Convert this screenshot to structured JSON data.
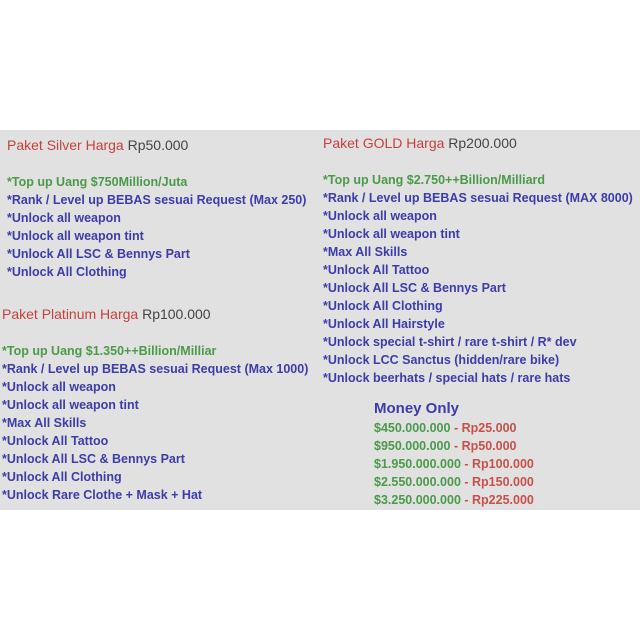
{
  "silver": {
    "name": "Paket Silver Harga",
    "price": "Rp50.000",
    "money": "*Top up Uang $750Million/Juta",
    "items": [
      "*Rank / Level up BEBAS sesuai Request (Max 250)",
      "*Unlock all weapon",
      "*Unlock all weapon tint",
      "*Unlock All LSC & Bennys Part",
      "*Unlock All Clothing"
    ]
  },
  "platinum": {
    "name": "Paket Platinum Harga",
    "price": "Rp100.000",
    "money": "*Top up Uang $1.350++Billion/Milliar",
    "items": [
      "*Rank / Level up BEBAS sesuai Request (Max 1000)",
      "*Unlock all weapon",
      "*Unlock all weapon tint",
      "*Max All Skills",
      "*Unlock All Tattoo",
      "*Unlock All LSC & Bennys Part",
      "*Unlock All Clothing",
      "*Unlock Rare Clothe + Mask + Hat"
    ]
  },
  "gold": {
    "name": "Paket GOLD Harga",
    "price": "Rp200.000",
    "money": "*Top up Uang $2.750++Billion/Milliard",
    "items": [
      "*Rank / Level up BEBAS sesuai Request (MAX 8000)",
      "*Unlock all weapon",
      "*Unlock all weapon tint",
      "*Max All Skills",
      "*Unlock All Tattoo",
      "*Unlock All LSC & Bennys Part",
      "*Unlock All Clothing",
      "*Unlock All Hairstyle",
      "*Unlock special t-shirt / rare t-shirt / R* dev",
      "*Unlock LCC Sanctus (hidden/rare bike)",
      "*Unlock beerhats / special hats / rare hats"
    ]
  },
  "money_only": {
    "title": "Money Only",
    "rows": [
      {
        "amount": "$450.000.000",
        "sep": " - ",
        "price": "Rp25.000"
      },
      {
        "amount": "$950.000.000",
        "sep": " - ",
        "price": "Rp50.000"
      },
      {
        "amount": "$1.950.000.000",
        "sep": " - ",
        "price": "Rp100.000"
      },
      {
        "amount": "$2.550.000.000",
        "sep": " - ",
        "price": "Rp150.000"
      },
      {
        "amount": "$3.250.000.000",
        "sep": " - ",
        "price": "Rp225.000"
      }
    ]
  },
  "colors": {
    "title": "#c8403c",
    "money": "#4a9a4a",
    "feature": "#3c3caa",
    "background": "#e1e1e1"
  }
}
